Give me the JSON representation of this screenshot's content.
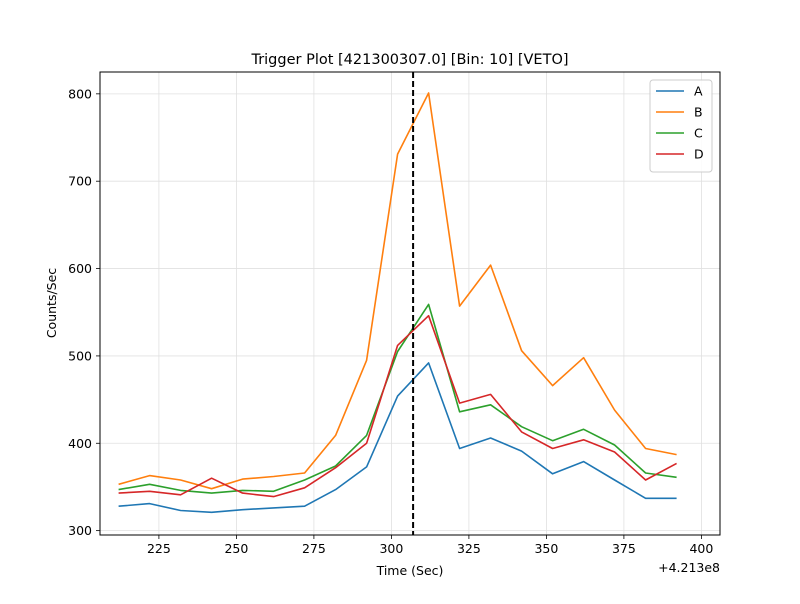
{
  "chart_data": {
    "type": "line",
    "title": "Trigger Plot [421300307.0] [Bin: 10] [VETO]",
    "xlabel": "Time (Sec)",
    "ylabel": "Counts/Sec",
    "x_offset_label": "+4.213e8",
    "x_offset": 421300000,
    "xlim": [
      206,
      406
    ],
    "ylim": [
      295,
      825
    ],
    "x_ticks": [
      225,
      250,
      275,
      300,
      325,
      350,
      375,
      400
    ],
    "y_ticks": [
      300,
      400,
      500,
      600,
      700,
      800
    ],
    "grid": true,
    "legend_position": "top-right",
    "x": [
      212,
      222,
      232,
      242,
      252,
      262,
      272,
      282,
      292,
      302,
      312,
      322,
      332,
      342,
      352,
      362,
      372,
      382,
      392
    ],
    "series": [
      {
        "name": "A",
        "color": "#1f77b4",
        "values": [
          328,
          331,
          323,
          321,
          324,
          326,
          328,
          347,
          373,
          454,
          492,
          394,
          406,
          391,
          365,
          379,
          358,
          337,
          337
        ]
      },
      {
        "name": "B",
        "color": "#ff7f0e",
        "values": [
          353,
          363,
          358,
          348,
          359,
          362,
          366,
          409,
          495,
          731,
          801,
          557,
          604,
          506,
          466,
          498,
          438,
          394,
          387
        ]
      },
      {
        "name": "C",
        "color": "#2ca02c",
        "values": [
          347,
          353,
          346,
          343,
          346,
          345,
          358,
          374,
          409,
          505,
          559,
          436,
          444,
          419,
          403,
          416,
          398,
          366,
          361
        ]
      },
      {
        "name": "D",
        "color": "#d62728",
        "values": [
          343,
          345,
          341,
          360,
          343,
          339,
          349,
          372,
          400,
          512,
          546,
          446,
          456,
          413,
          394,
          404,
          390,
          358,
          377
        ]
      }
    ],
    "vline": {
      "x": 307,
      "color": "#000000",
      "style": "dashed"
    }
  }
}
